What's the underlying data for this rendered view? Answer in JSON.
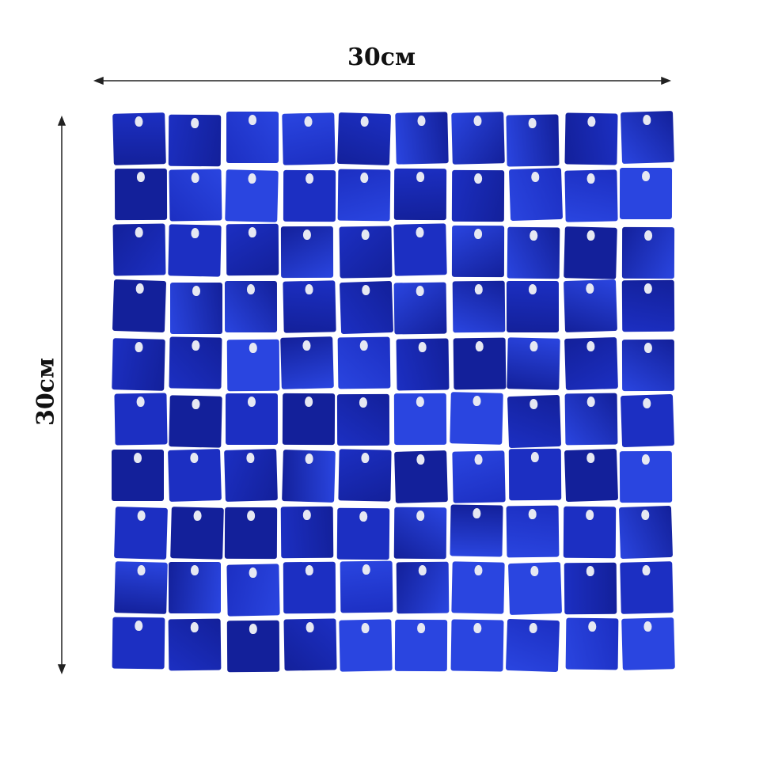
{
  "dimensions": {
    "width_label": "30см",
    "height_label": "30см"
  },
  "panel": {
    "rows": 10,
    "columns": 10,
    "tile_color": "#1c2fc2",
    "tile_color_dark": "#13209a",
    "tile_color_light": "#2a45e0"
  }
}
